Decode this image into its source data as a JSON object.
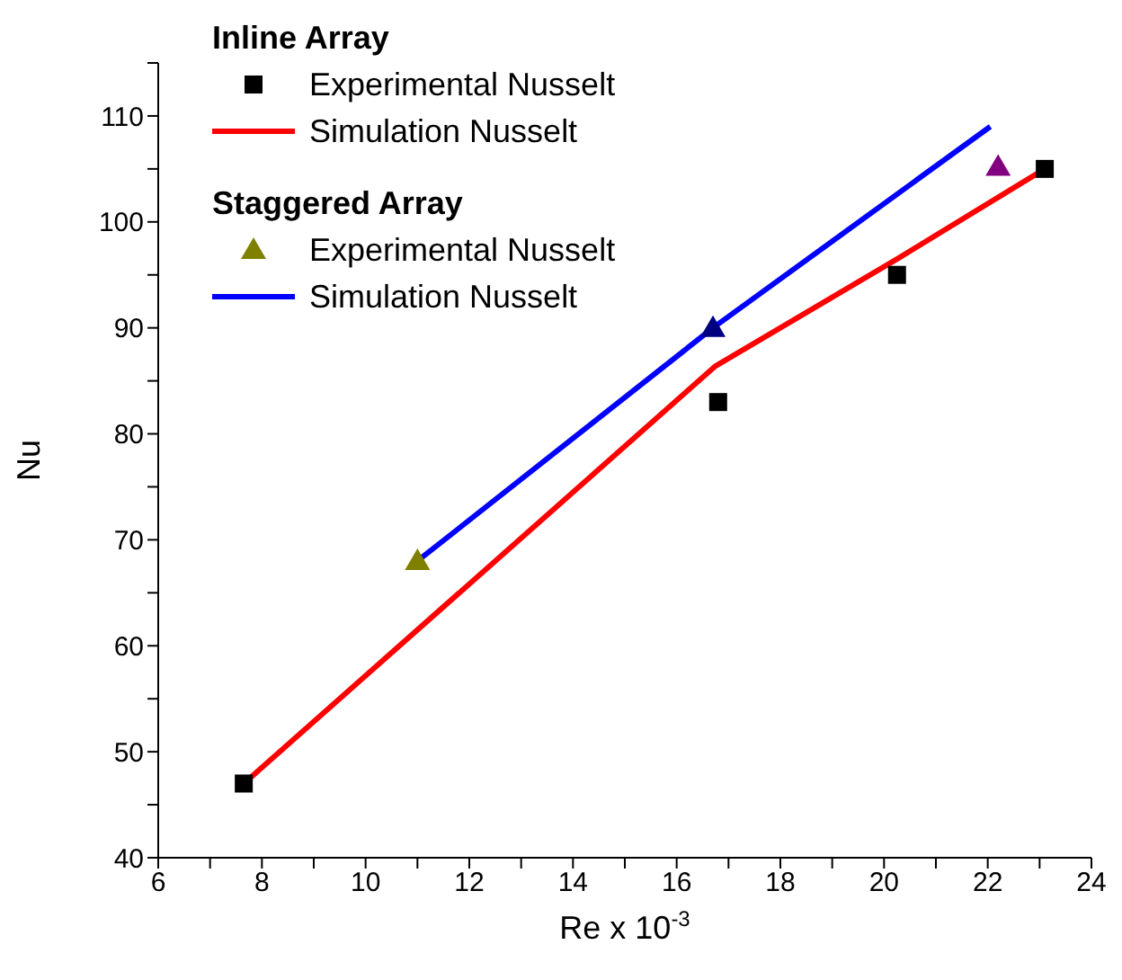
{
  "chart_data": {
    "type": "line",
    "xlabel": "Re x 10$^{-3}$",
    "ylabel": "Nu",
    "xlim": [
      6,
      24
    ],
    "xticks": [
      6,
      {
        "value": 7,
        "label": null
      },
      8,
      {
        "value": 9,
        "label": null
      },
      10,
      {
        "value": 11,
        "label": null
      },
      12,
      {
        "value": 13,
        "label": null
      },
      14,
      {
        "value": 15,
        "label": null
      },
      16,
      {
        "value": 17,
        "label": null
      },
      18,
      {
        "value": 19,
        "label": null
      },
      20,
      {
        "value": 21,
        "label": null
      },
      22,
      {
        "value": 23,
        "label": null
      },
      24
    ],
    "ylim": [
      40,
      115
    ],
    "yticks": [
      40,
      {
        "value": 45,
        "label": null
      },
      50,
      {
        "value": 55,
        "label": null
      },
      60,
      {
        "value": 65,
        "label": null
      },
      70,
      {
        "value": 75,
        "label": null
      },
      80,
      {
        "value": 85,
        "label": null
      },
      90,
      {
        "value": 95,
        "label": null
      },
      100,
      {
        "value": 105,
        "label": null
      },
      110,
      {
        "value": 115,
        "label": null
      }
    ],
    "grid": false,
    "legend": "top left",
    "annotations": [
      "Inline Array",
      "Staggered Array"
    ],
    "series": [
      {
        "name": "Experimental Nusselt",
        "type": "scatter",
        "marker": "square",
        "color": "#000000",
        "x": [
          7.65,
          16.8,
          20.25,
          23.1
        ],
        "values": [
          47,
          83,
          95,
          105
        ]
      },
      {
        "name": "Simulation Nusselt",
        "marker": "none",
        "color": "#ff0000",
        "x": [
          7.65,
          16.75,
          20.25,
          23.1
        ],
        "values": [
          47,
          86.4,
          96.5,
          105
        ]
      },
      {
        "name": "Experimental Nusselt",
        "type": "scatter",
        "marker": "triangle",
        "color": "#808000",
        "colors": [
          "#808000",
          "#000080",
          "#800080"
        ],
        "x": [
          11,
          16.7,
          22.2
        ],
        "values": [
          68,
          90,
          105.2
        ]
      },
      {
        "name": "Simulation Nusselt",
        "marker": "none",
        "color": "#0000ff",
        "x": [
          11,
          16.7,
          22.05
        ],
        "values": [
          68,
          90,
          109
        ]
      }
    ]
  }
}
